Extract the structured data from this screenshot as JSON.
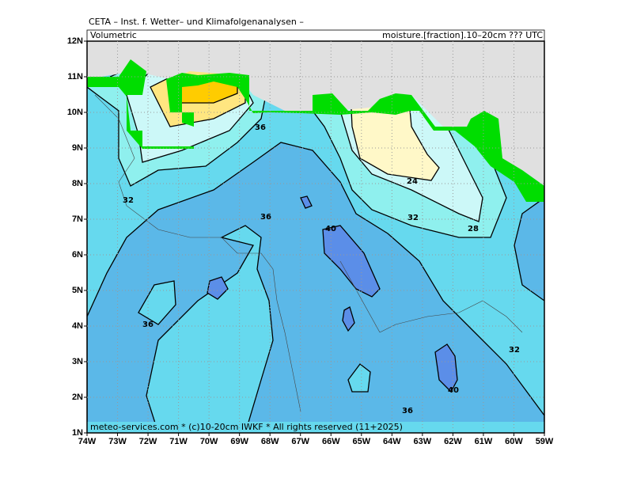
{
  "header": {
    "title": "CETA – Inst. f. Wetter– und Klimafolgenanalysen –",
    "quantity": "Volumetric",
    "variable": "moisture.[fraction].10–20cm ??? UTC"
  },
  "map": {
    "lat_labels": [
      "12N",
      "11N",
      "10N",
      "9N",
      "8N",
      "7N",
      "6N",
      "5N",
      "4N",
      "3N",
      "2N",
      "1N"
    ],
    "lon_labels": [
      "74W",
      "73W",
      "72W",
      "71W",
      "70W",
      "69W",
      "68W",
      "67W",
      "66W",
      "65W",
      "64W",
      "63W",
      "62W",
      "61W",
      "60W",
      "59W"
    ],
    "contour_labels": [
      "36",
      "32",
      "36",
      "40",
      "24",
      "32",
      "28",
      "36",
      "32",
      "40",
      "36"
    ],
    "footer": "meteo-services.com * (c)10-20cm IWKF * All rights reserved (11+2025)"
  }
}
